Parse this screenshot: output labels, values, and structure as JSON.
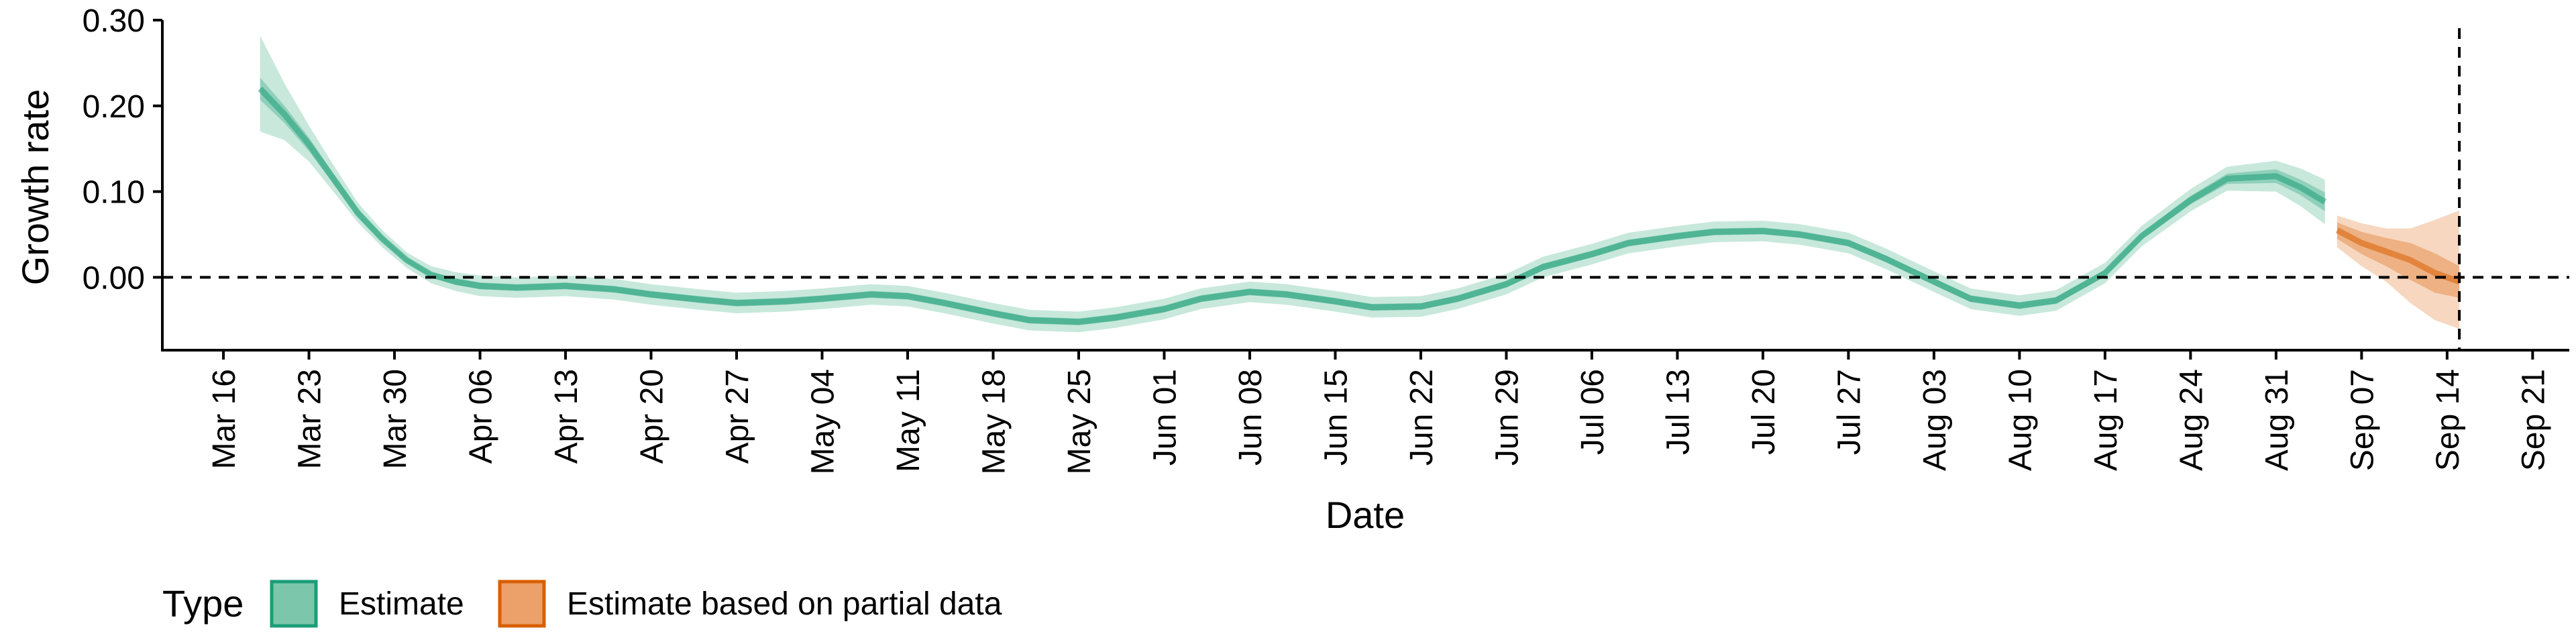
{
  "chart_data": {
    "type": "area",
    "xlabel": "Date",
    "ylabel": "Growth rate",
    "ylim": [
      -0.085,
      0.3
    ],
    "y_ticks": [
      0.0,
      0.1,
      0.2,
      0.3
    ],
    "y_tick_labels": [
      "0.00",
      "0.10",
      "0.20",
      "0.30"
    ],
    "x_tick_labels": [
      "Mar 16",
      "Mar 23",
      "Mar 30",
      "Apr 06",
      "Apr 13",
      "Apr 20",
      "Apr 27",
      "May 04",
      "May 11",
      "May 18",
      "May 25",
      "Jun 01",
      "Jun 08",
      "Jun 15",
      "Jun 22",
      "Jun 29",
      "Jul 06",
      "Jul 13",
      "Jul 20",
      "Jul 27",
      "Aug 03",
      "Aug 10",
      "Aug 17",
      "Aug 24",
      "Aug 31",
      "Sep 07",
      "Sep 14",
      "Sep 21"
    ],
    "x_tick_dates": [
      "2020-03-16",
      "2020-03-23",
      "2020-03-30",
      "2020-04-06",
      "2020-04-13",
      "2020-04-20",
      "2020-04-27",
      "2020-05-04",
      "2020-05-11",
      "2020-05-18",
      "2020-05-25",
      "2020-06-01",
      "2020-06-08",
      "2020-06-15",
      "2020-06-22",
      "2020-06-29",
      "2020-07-06",
      "2020-07-13",
      "2020-07-20",
      "2020-07-27",
      "2020-08-03",
      "2020-08-10",
      "2020-08-17",
      "2020-08-24",
      "2020-08-31",
      "2020-09-07",
      "2020-09-14",
      "2020-09-21"
    ],
    "x_range": [
      "2020-03-11",
      "2020-09-24"
    ],
    "reference_lines": {
      "horizontal_y": 0,
      "vertical_date": "2020-09-15"
    },
    "grid": false,
    "legend": {
      "title": "Type",
      "position": "bottom-left",
      "entries": [
        {
          "label": "Estimate",
          "fill": "#7cc7ab",
          "stroke": "#1b9e77"
        },
        {
          "label": "Estimate based on partial data",
          "fill": "#eca06a",
          "stroke": "#d95f02"
        }
      ]
    },
    "series": [
      {
        "name": "Estimate",
        "color": "#1b9e77",
        "x": [
          "2020-03-19",
          "2020-03-21",
          "2020-03-23",
          "2020-03-25",
          "2020-03-27",
          "2020-03-29",
          "2020-03-31",
          "2020-04-02",
          "2020-04-04",
          "2020-04-06",
          "2020-04-09",
          "2020-04-13",
          "2020-04-17",
          "2020-04-20",
          "2020-04-24",
          "2020-04-27",
          "2020-05-01",
          "2020-05-04",
          "2020-05-08",
          "2020-05-11",
          "2020-05-14",
          "2020-05-18",
          "2020-05-21",
          "2020-05-25",
          "2020-05-28",
          "2020-06-01",
          "2020-06-04",
          "2020-06-08",
          "2020-06-11",
          "2020-06-15",
          "2020-06-18",
          "2020-06-22",
          "2020-06-25",
          "2020-06-29",
          "2020-07-02",
          "2020-07-06",
          "2020-07-09",
          "2020-07-13",
          "2020-07-16",
          "2020-07-20",
          "2020-07-23",
          "2020-07-27",
          "2020-07-30",
          "2020-08-03",
          "2020-08-06",
          "2020-08-10",
          "2020-08-13",
          "2020-08-17",
          "2020-08-20",
          "2020-08-24",
          "2020-08-27",
          "2020-08-31",
          "2020-09-02",
          "2020-09-04"
        ],
        "median": [
          0.22,
          0.19,
          0.155,
          0.115,
          0.075,
          0.045,
          0.02,
          0.003,
          -0.005,
          -0.01,
          -0.012,
          -0.01,
          -0.014,
          -0.02,
          -0.026,
          -0.03,
          -0.028,
          -0.025,
          -0.02,
          -0.022,
          -0.03,
          -0.042,
          -0.05,
          -0.052,
          -0.047,
          -0.037,
          -0.025,
          -0.017,
          -0.02,
          -0.028,
          -0.035,
          -0.034,
          -0.025,
          -0.008,
          0.012,
          0.027,
          0.04,
          0.048,
          0.053,
          0.054,
          0.05,
          0.04,
          0.022,
          -0.005,
          -0.025,
          -0.033,
          -0.027,
          0.005,
          0.048,
          0.09,
          0.115,
          0.118,
          0.105,
          0.088
        ],
        "lower_50": [
          0.207,
          0.18,
          0.147,
          0.109,
          0.07,
          0.041,
          0.017,
          0.0,
          -0.009,
          -0.014,
          -0.016,
          -0.014,
          -0.018,
          -0.024,
          -0.03,
          -0.034,
          -0.032,
          -0.029,
          -0.024,
          -0.026,
          -0.034,
          -0.046,
          -0.054,
          -0.056,
          -0.051,
          -0.041,
          -0.029,
          -0.021,
          -0.024,
          -0.032,
          -0.039,
          -0.038,
          -0.029,
          -0.012,
          0.008,
          0.023,
          0.036,
          0.044,
          0.049,
          0.05,
          0.046,
          0.036,
          0.018,
          -0.009,
          -0.029,
          -0.037,
          -0.031,
          0.001,
          0.044,
          0.085,
          0.109,
          0.11,
          0.096,
          0.077
        ],
        "upper_50": [
          0.233,
          0.2,
          0.163,
          0.121,
          0.08,
          0.049,
          0.023,
          0.006,
          -0.001,
          -0.006,
          -0.008,
          -0.006,
          -0.01,
          -0.016,
          -0.022,
          -0.026,
          -0.024,
          -0.021,
          -0.016,
          -0.018,
          -0.026,
          -0.038,
          -0.046,
          -0.048,
          -0.043,
          -0.033,
          -0.021,
          -0.013,
          -0.016,
          -0.024,
          -0.031,
          -0.03,
          -0.021,
          -0.004,
          0.016,
          0.031,
          0.044,
          0.052,
          0.057,
          0.058,
          0.054,
          0.044,
          0.026,
          -0.001,
          -0.021,
          -0.029,
          -0.023,
          0.009,
          0.052,
          0.095,
          0.121,
          0.126,
          0.114,
          0.099
        ],
        "lower_90": [
          0.17,
          0.16,
          0.135,
          0.1,
          0.064,
          0.035,
          0.011,
          -0.007,
          -0.016,
          -0.022,
          -0.024,
          -0.022,
          -0.026,
          -0.032,
          -0.038,
          -0.042,
          -0.04,
          -0.037,
          -0.032,
          -0.034,
          -0.042,
          -0.054,
          -0.062,
          -0.064,
          -0.059,
          -0.049,
          -0.037,
          -0.029,
          -0.032,
          -0.04,
          -0.047,
          -0.046,
          -0.037,
          -0.02,
          0.0,
          0.015,
          0.028,
          0.036,
          0.041,
          0.042,
          0.038,
          0.028,
          0.01,
          -0.017,
          -0.037,
          -0.045,
          -0.039,
          -0.007,
          0.036,
          0.077,
          0.101,
          0.1,
          0.083,
          0.062
        ],
        "upper_90": [
          0.282,
          0.226,
          0.177,
          0.131,
          0.087,
          0.055,
          0.029,
          0.013,
          0.006,
          0.002,
          0.0,
          0.002,
          -0.002,
          -0.008,
          -0.014,
          -0.018,
          -0.016,
          -0.013,
          -0.008,
          -0.01,
          -0.018,
          -0.03,
          -0.038,
          -0.04,
          -0.035,
          -0.025,
          -0.013,
          -0.005,
          -0.008,
          -0.016,
          -0.023,
          -0.022,
          -0.013,
          0.004,
          0.024,
          0.039,
          0.052,
          0.06,
          0.065,
          0.066,
          0.062,
          0.052,
          0.034,
          0.007,
          -0.013,
          -0.021,
          -0.015,
          0.017,
          0.06,
          0.103,
          0.129,
          0.136,
          0.127,
          0.114
        ]
      },
      {
        "name": "Estimate based on partial data",
        "color": "#d95f02",
        "x": [
          "2020-09-05",
          "2020-09-07",
          "2020-09-09",
          "2020-09-11",
          "2020-09-13",
          "2020-09-15"
        ],
        "median": [
          0.055,
          0.04,
          0.03,
          0.02,
          0.005,
          -0.005
        ],
        "lower_50": [
          0.045,
          0.027,
          0.013,
          -0.003,
          -0.018,
          -0.024
        ],
        "upper_50": [
          0.064,
          0.053,
          0.046,
          0.04,
          0.028,
          0.013
        ],
        "lower_90": [
          0.035,
          0.013,
          -0.005,
          -0.03,
          -0.05,
          -0.06
        ],
        "upper_90": [
          0.072,
          0.063,
          0.057,
          0.057,
          0.067,
          0.078
        ]
      }
    ]
  }
}
